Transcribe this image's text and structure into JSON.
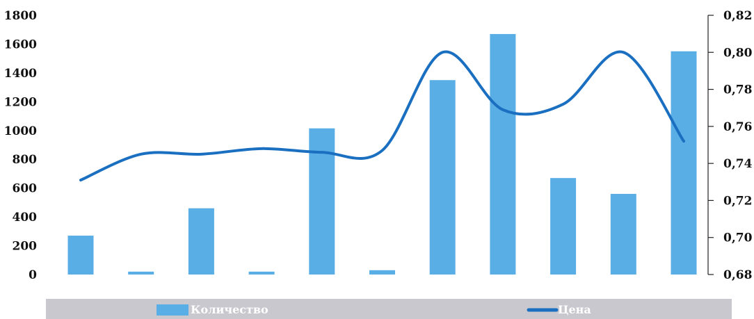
{
  "chart_data": {
    "type": "bar+line",
    "categories": [
      "",
      "",
      "",
      "",
      "",
      "",
      "",
      "",
      "",
      "",
      ""
    ],
    "series": [
      {
        "name": "Количество",
        "type": "bar",
        "axis": "left",
        "color": "#5aaee6",
        "values": [
          270,
          20,
          460,
          20,
          1015,
          30,
          1350,
          1670,
          670,
          560,
          1550
        ]
      },
      {
        "name": "Цена",
        "type": "line",
        "axis": "right",
        "color": "#1a6fc0",
        "values": [
          0.731,
          0.745,
          0.745,
          0.748,
          0.746,
          0.747,
          0.8,
          0.769,
          0.772,
          0.8,
          0.752
        ]
      }
    ],
    "y_left": {
      "ylim": [
        0,
        1800
      ],
      "ticks": [
        "0",
        "200",
        "400",
        "600",
        "800",
        "1000",
        "1200",
        "1400",
        "1600",
        "1800"
      ]
    },
    "y_right": {
      "ylim": [
        0.68,
        0.82
      ],
      "ticks": [
        "0,68",
        "0,70",
        "0,72",
        "0,74",
        "0,76",
        "0,78",
        "0,80",
        "0,82"
      ]
    },
    "grid": false,
    "legend": {
      "placement": "bottom",
      "background": "#c9c8cf",
      "items": [
        {
          "label": "Количество",
          "marker": "bar",
          "color": "#5aaee6"
        },
        {
          "label": "Цена",
          "marker": "line",
          "color": "#1a6fc0"
        }
      ]
    }
  }
}
